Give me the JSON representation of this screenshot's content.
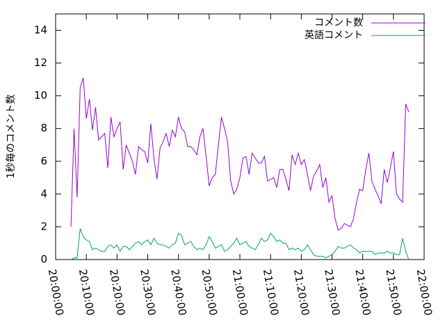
{
  "chart_data": {
    "type": "line",
    "ylabel": "1秒毎のコメント数",
    "x": [
      "20:05:00",
      "20:06:00",
      "20:07:00",
      "20:08:00",
      "20:09:00",
      "20:10:00",
      "20:11:00",
      "20:12:00",
      "20:13:00",
      "20:14:00",
      "20:15:00",
      "20:16:00",
      "20:17:00",
      "20:18:00",
      "20:19:00",
      "20:20:00",
      "20:21:00",
      "20:22:00",
      "20:23:00",
      "20:24:00",
      "20:25:00",
      "20:26:00",
      "20:27:00",
      "20:28:00",
      "20:29:00",
      "20:30:00",
      "20:31:00",
      "20:32:00",
      "20:33:00",
      "20:34:00",
      "20:35:00",
      "20:36:00",
      "20:37:00",
      "20:38:00",
      "20:39:00",
      "20:40:00",
      "20:41:00",
      "20:42:00",
      "20:43:00",
      "20:44:00",
      "20:45:00",
      "20:46:00",
      "20:47:00",
      "20:48:00",
      "20:49:00",
      "20:50:00",
      "20:51:00",
      "20:52:00",
      "20:53:00",
      "20:54:00",
      "20:55:00",
      "20:56:00",
      "20:57:00",
      "20:58:00",
      "20:59:00",
      "21:00:00",
      "21:01:00",
      "21:02:00",
      "21:03:00",
      "21:04:00",
      "21:05:00",
      "21:06:00",
      "21:07:00",
      "21:08:00",
      "21:09:00",
      "21:10:00",
      "21:11:00",
      "21:12:00",
      "21:13:00",
      "21:14:00",
      "21:15:00",
      "21:16:00",
      "21:17:00",
      "21:18:00",
      "21:19:00",
      "21:20:00",
      "21:21:00",
      "21:22:00",
      "21:23:00",
      "21:24:00",
      "21:25:00",
      "21:26:00",
      "21:27:00",
      "21:28:00",
      "21:29:00",
      "21:30:00",
      "21:31:00",
      "21:32:00",
      "21:33:00",
      "21:34:00",
      "21:35:00",
      "21:36:00",
      "21:37:00",
      "21:38:00",
      "21:39:00",
      "21:40:00",
      "21:41:00",
      "21:42:00",
      "21:43:00",
      "21:44:00",
      "21:45:00",
      "21:46:00",
      "21:47:00",
      "21:48:00",
      "21:49:00",
      "21:50:00",
      "21:51:00",
      "21:52:00",
      "21:53:00",
      "21:54:00",
      "21:55:00"
    ],
    "series": [
      {
        "name": "コメント数",
        "color": "#9400d3",
        "values": [
          2.0,
          8.0,
          3.8,
          10.5,
          11.1,
          8.6,
          9.8,
          7.9,
          9.3,
          7.3,
          7.5,
          7.7,
          5.6,
          8.7,
          7.5,
          8.0,
          8.4,
          5.5,
          7.0,
          6.5,
          6.0,
          5.2,
          6.9,
          6.7,
          6.6,
          5.9,
          8.3,
          6.2,
          4.9,
          6.8,
          7.2,
          7.7,
          6.9,
          7.9,
          7.5,
          8.7,
          8.0,
          7.8,
          6.9,
          6.9,
          6.7,
          6.4,
          7.5,
          8.0,
          6.3,
          4.5,
          5.0,
          5.2,
          7.0,
          8.7,
          8.0,
          7.2,
          4.8,
          4.0,
          4.3,
          5.0,
          6.2,
          6.3,
          5.2,
          6.5,
          6.2,
          5.9,
          5.9,
          6.3,
          4.8,
          4.9,
          5.0,
          4.4,
          5.5,
          5.5,
          4.9,
          4.2,
          6.4,
          5.8,
          6.5,
          5.8,
          6.1,
          5.2,
          4.2,
          5.1,
          5.4,
          5.8,
          4.4,
          5.0,
          3.5,
          3.9,
          2.5,
          1.8,
          1.9,
          2.2,
          2.1,
          2.0,
          2.5,
          3.5,
          4.3,
          4.2,
          5.5,
          6.5,
          4.8,
          4.3,
          3.9,
          3.4,
          5.5,
          4.7,
          5.6,
          6.6,
          4.0,
          3.7,
          3.5,
          9.5,
          9.0
        ]
      },
      {
        "name": "英語コメント",
        "color": "#009e73",
        "values": [
          0,
          0.1,
          0.1,
          1.9,
          1.4,
          1.2,
          1.1,
          0.6,
          0.7,
          0.6,
          0.5,
          0.5,
          0.8,
          0.9,
          0.7,
          0.9,
          0.5,
          0.8,
          0.8,
          0.6,
          0.8,
          1.0,
          1.1,
          0.9,
          1.1,
          1.2,
          0.9,
          1.3,
          1.0,
          0.9,
          0.9,
          0.8,
          0.7,
          0.9,
          1.0,
          1.6,
          1.5,
          0.9,
          1.0,
          1.1,
          0.8,
          0.6,
          0.7,
          0.6,
          0.9,
          1.4,
          1.1,
          0.7,
          0.8,
          0.9,
          0.5,
          0.6,
          0.8,
          1.0,
          1.3,
          0.9,
          1.0,
          1.1,
          0.8,
          0.7,
          0.6,
          0.9,
          1.3,
          1.1,
          1.2,
          1.6,
          1.4,
          1.1,
          1.2,
          1.0,
          1.0,
          0.6,
          0.7,
          0.6,
          0.7,
          0.5,
          0.6,
          0.9,
          0.6,
          0.3,
          0.2,
          0.2,
          0.2,
          0.1,
          0.2,
          0.3,
          0.5,
          0.8,
          0.7,
          0.7,
          0.8,
          0.9,
          0.7,
          0.6,
          0.4,
          0.5,
          0.5,
          0.5,
          0.5,
          0.3,
          0.4,
          0.4,
          0.4,
          0.5,
          0.4,
          0.4,
          0.3,
          0.3,
          1.3,
          0.5,
          0.0
        ]
      }
    ],
    "xlim": [
      "20:00:00",
      "22:00:00"
    ],
    "xticks": [
      "20:00:00",
      "20:10:00",
      "20:20:00",
      "20:30:00",
      "20:40:00",
      "20:50:00",
      "21:00:00",
      "21:10:00",
      "21:20:00",
      "21:30:00",
      "21:40:00",
      "21:50:00",
      "22:00:00"
    ],
    "ylim": [
      0,
      15
    ],
    "yticks": [
      0,
      2,
      4,
      6,
      8,
      10,
      12,
      14
    ],
    "legend": "upper-right"
  }
}
